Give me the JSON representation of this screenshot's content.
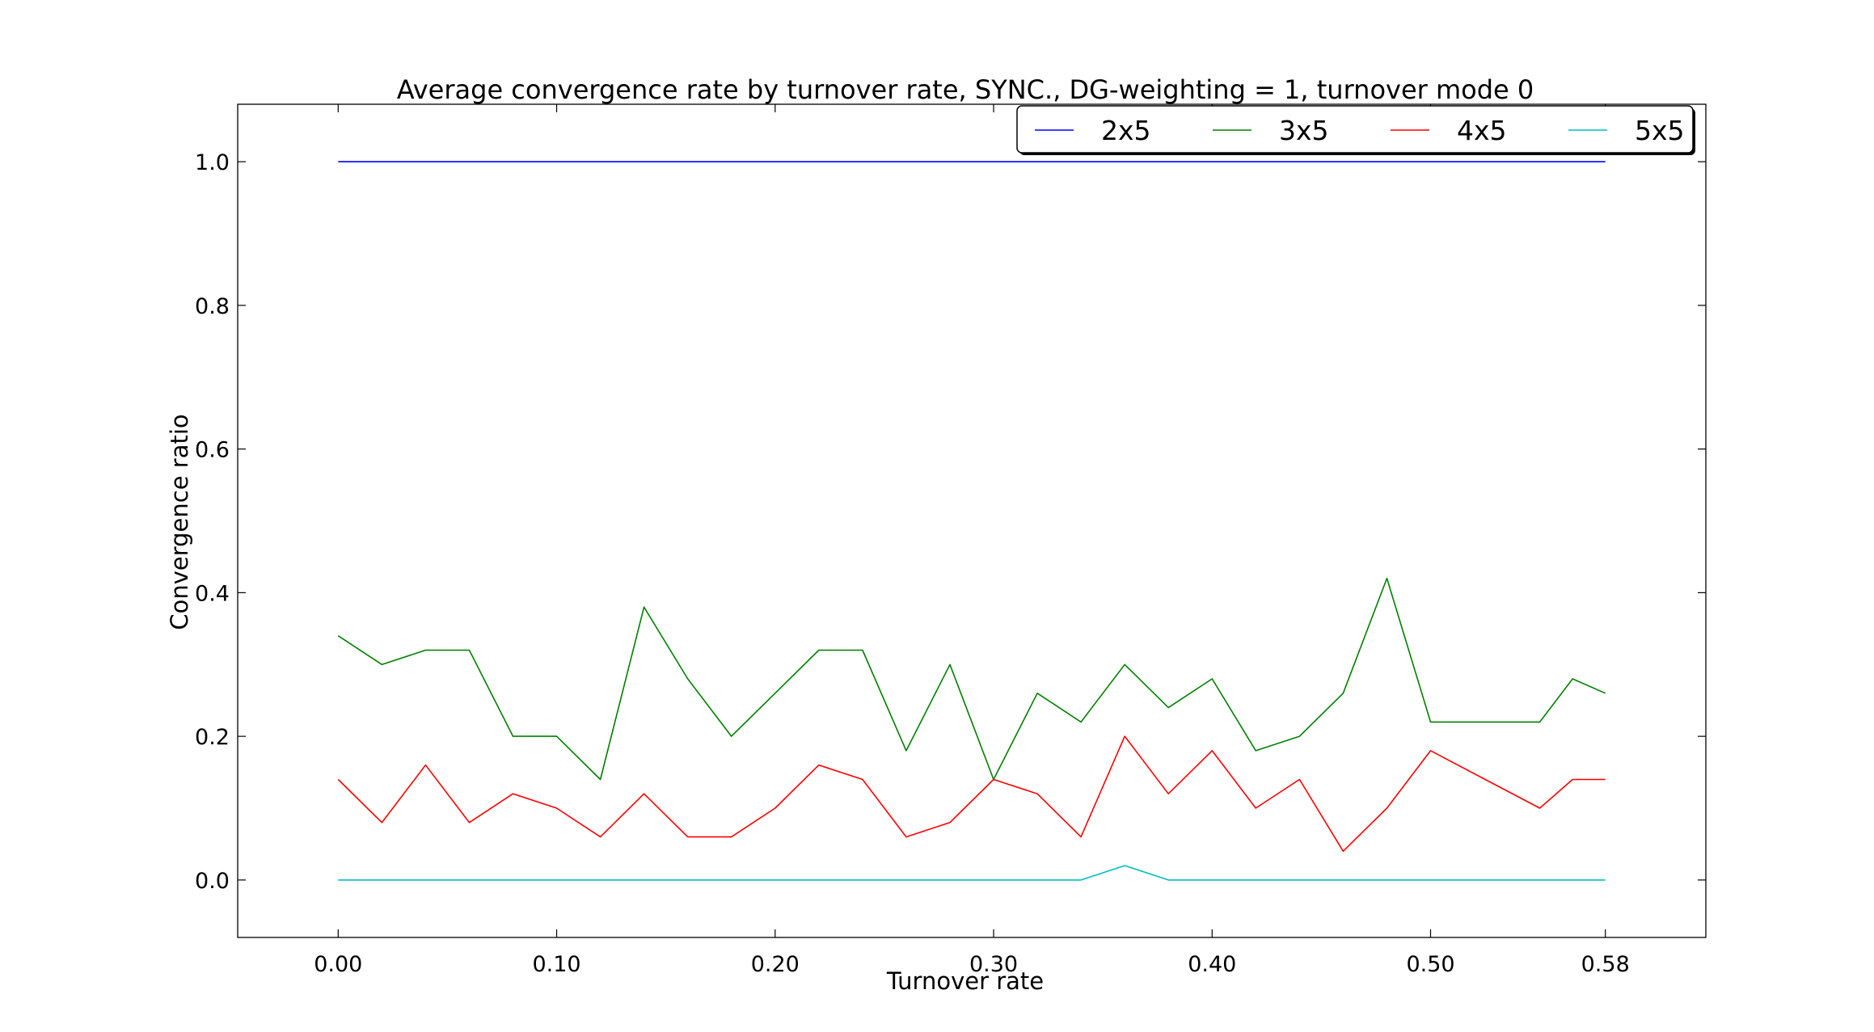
{
  "chart_data": {
    "type": "line",
    "title": "Average convergence rate by turnover rate, SYNC., DG-weighting = 1, turnover mode 0",
    "xlabel": "Turnover rate",
    "ylabel": "Convergence ratio",
    "xlim": [
      -0.046,
      0.626
    ],
    "ylim": [
      -0.08,
      1.08
    ],
    "xticks": [
      0.0,
      0.1,
      0.2,
      0.3,
      0.4,
      0.5,
      0.58
    ],
    "xtick_labels": [
      "0.00",
      "0.10",
      "0.20",
      "0.30",
      "0.40",
      "0.50",
      "0.58"
    ],
    "yticks": [
      0.0,
      0.2,
      0.4,
      0.6,
      0.8,
      1.0
    ],
    "ytick_labels": [
      "0.0",
      "0.2",
      "0.4",
      "0.6",
      "0.8",
      "1.0"
    ],
    "grid": false,
    "legend_position": "top-right",
    "x": [
      0.0,
      0.02,
      0.04,
      0.06,
      0.08,
      0.1,
      0.12,
      0.14,
      0.16,
      0.18,
      0.2,
      0.22,
      0.24,
      0.26,
      0.28,
      0.3,
      0.32,
      0.34,
      0.36,
      0.38,
      0.4,
      0.42,
      0.44,
      0.46,
      0.48,
      0.5,
      0.525,
      0.55,
      0.565,
      0.58
    ],
    "series": [
      {
        "name": "2x5",
        "color": "#0000ff",
        "values": [
          1.0,
          1.0,
          1.0,
          1.0,
          1.0,
          1.0,
          1.0,
          1.0,
          1.0,
          1.0,
          1.0,
          1.0,
          1.0,
          1.0,
          1.0,
          1.0,
          1.0,
          1.0,
          1.0,
          1.0,
          1.0,
          1.0,
          1.0,
          1.0,
          1.0,
          1.0,
          1.0,
          1.0,
          1.0,
          1.0
        ]
      },
      {
        "name": "3x5",
        "color": "#008000",
        "values": [
          0.34,
          0.3,
          0.32,
          0.32,
          0.2,
          0.2,
          0.14,
          0.38,
          0.28,
          0.2,
          0.26,
          0.32,
          0.32,
          0.18,
          0.3,
          0.14,
          0.26,
          0.22,
          0.3,
          0.24,
          0.28,
          0.18,
          0.2,
          0.26,
          0.42,
          0.22,
          0.22,
          0.22,
          0.28,
          0.26
        ]
      },
      {
        "name": "4x5",
        "color": "#ff0000",
        "values": [
          0.14,
          0.08,
          0.16,
          0.08,
          0.12,
          0.1,
          0.06,
          0.12,
          0.06,
          0.06,
          0.1,
          0.16,
          0.14,
          0.06,
          0.08,
          0.14,
          0.12,
          0.06,
          0.2,
          0.12,
          0.18,
          0.1,
          0.14,
          0.04,
          0.1,
          0.18,
          0.14,
          0.1,
          0.14,
          0.14
        ]
      },
      {
        "name": "5x5",
        "color": "#00bfbf",
        "values": [
          0.0,
          0.0,
          0.0,
          0.0,
          0.0,
          0.0,
          0.0,
          0.0,
          0.0,
          0.0,
          0.0,
          0.0,
          0.0,
          0.0,
          0.0,
          0.0,
          0.0,
          0.0,
          0.02,
          0.0,
          0.0,
          0.0,
          0.0,
          0.0,
          0.0,
          0.0,
          0.0,
          0.0,
          0.0,
          0.0
        ]
      }
    ]
  }
}
